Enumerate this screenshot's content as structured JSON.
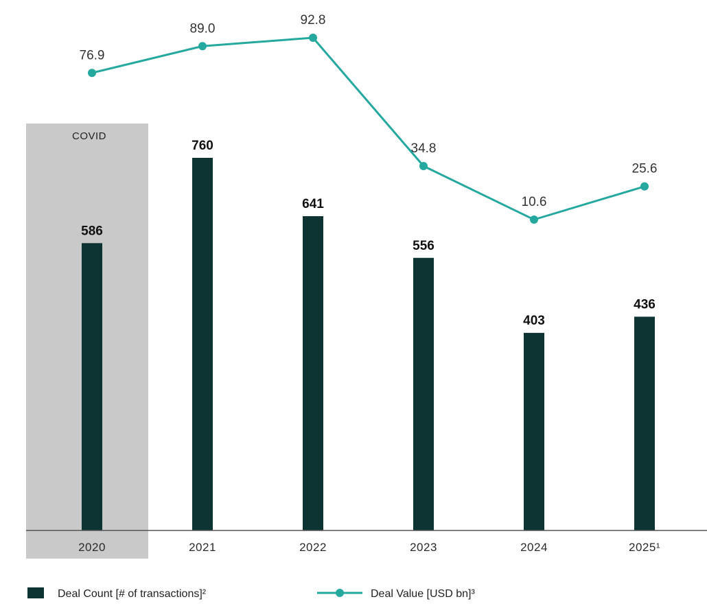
{
  "chart_data": {
    "type": "bar",
    "categories": [
      "2020",
      "2021",
      "2022",
      "2023",
      "2024",
      "2025¹"
    ],
    "series": [
      {
        "name": "Deal Count [# of transactions]²",
        "type": "bar",
        "values": [
          586,
          760,
          641,
          556,
          403,
          436
        ]
      },
      {
        "name": "Deal Value [USD bn]³",
        "type": "line",
        "values": [
          76.9,
          89.0,
          92.8,
          34.8,
          10.6,
          25.6
        ]
      }
    ],
    "annotations": [
      {
        "text": "COVID",
        "category": "2020"
      }
    ],
    "grid": false,
    "legend": "bottom-left",
    "colors": {
      "bar": "#0d3333",
      "line": "#25a89e",
      "highlight": "#c9c9c9"
    }
  }
}
